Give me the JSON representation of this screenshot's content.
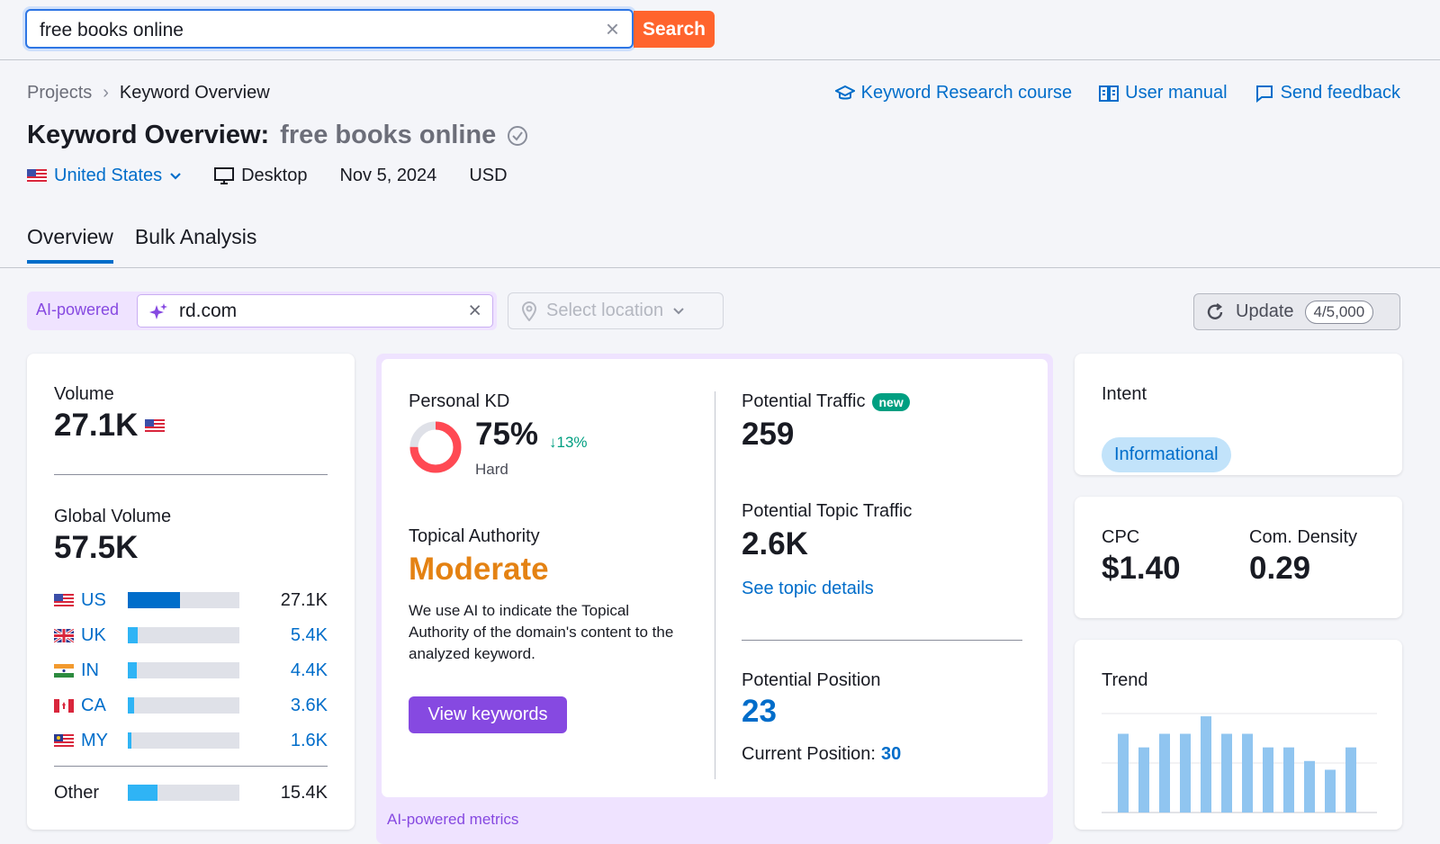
{
  "search": {
    "query": "free books online",
    "button_label": "Search"
  },
  "breadcrumb": {
    "root": "Projects",
    "current": "Keyword Overview"
  },
  "top_links": {
    "course": "Keyword Research course",
    "manual": "User manual",
    "feedback": "Send feedback"
  },
  "title": {
    "prefix": "Keyword Overview:",
    "keyword": "free books online"
  },
  "meta": {
    "database": "United States",
    "device": "Desktop",
    "date": "Nov 5, 2024",
    "currency": "USD"
  },
  "tabs": [
    "Overview",
    "Bulk Analysis"
  ],
  "filters": {
    "ai_label": "AI-powered",
    "domain": "rd.com",
    "location_placeholder": "Select location",
    "update_label": "Update",
    "update_count": "4/5,000"
  },
  "volume": {
    "label": "Volume",
    "value": "27.1K",
    "global_label": "Global Volume",
    "global_value": "57.5K",
    "countries": [
      {
        "code": "US",
        "value": "27.1K",
        "share": 0.47
      },
      {
        "code": "UK",
        "value": "5.4K",
        "share": 0.09
      },
      {
        "code": "IN",
        "value": "4.4K",
        "share": 0.08
      },
      {
        "code": "CA",
        "value": "3.6K",
        "share": 0.06
      },
      {
        "code": "MY",
        "value": "1.6K",
        "share": 0.03
      }
    ],
    "other": {
      "label": "Other",
      "value": "15.4K",
      "share": 0.27
    }
  },
  "ai_metrics": {
    "footer": "AI-powered metrics",
    "personal_kd": {
      "label": "Personal KD",
      "value": "75%",
      "change": "↓13%",
      "level": "Hard",
      "percent": 75
    },
    "topical_authority": {
      "label": "Topical Authority",
      "value": "Moderate",
      "description": "We use AI to indicate the Topical Authority of the domain's content to the analyzed keyword.",
      "button": "View keywords"
    },
    "potential_traffic": {
      "label": "Potential Traffic",
      "badge": "new",
      "value": "259"
    },
    "potential_topic_traffic": {
      "label": "Potential Topic Traffic",
      "value": "2.6K",
      "link": "See topic details"
    },
    "potential_position": {
      "label": "Potential Position",
      "value": "23",
      "current_label": "Current Position:",
      "current_value": "30"
    }
  },
  "intent": {
    "label": "Intent",
    "value": "Informational"
  },
  "cpc": {
    "label": "CPC",
    "value": "$1.40",
    "density_label": "Com. Density",
    "density_value": "0.29"
  },
  "trend": {
    "label": "Trend",
    "values": [
      0.81,
      0.67,
      0.81,
      0.81,
      0.99,
      0.81,
      0.81,
      0.67,
      0.67,
      0.53,
      0.44,
      0.67
    ]
  },
  "colors": {
    "accent": "#006dca",
    "search_button": "#ff642d",
    "ai_purple": "#8649e1",
    "moderate": "#e48213",
    "kd_red": "#ff4953",
    "trend_bar": "#90c5f0"
  }
}
